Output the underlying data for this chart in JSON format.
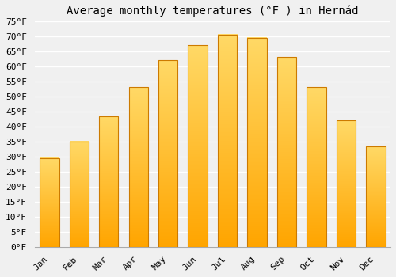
{
  "title": "Average monthly temperatures (°F ) in Hernád",
  "months": [
    "Jan",
    "Feb",
    "Mar",
    "Apr",
    "May",
    "Jun",
    "Jul",
    "Aug",
    "Sep",
    "Oct",
    "Nov",
    "Dec"
  ],
  "values": [
    29.5,
    35.0,
    43.5,
    53.0,
    62.0,
    67.0,
    70.5,
    69.5,
    63.0,
    53.0,
    42.0,
    33.5
  ],
  "bar_color_top": "#FFD966",
  "bar_color_bottom": "#FFA500",
  "bar_edge_color": "#CC7A00",
  "ylim": [
    0,
    75
  ],
  "ytick_step": 5,
  "background_color": "#f0f0f0",
  "grid_color": "#ffffff",
  "title_fontsize": 10,
  "tick_fontsize": 8,
  "font_family": "monospace"
}
